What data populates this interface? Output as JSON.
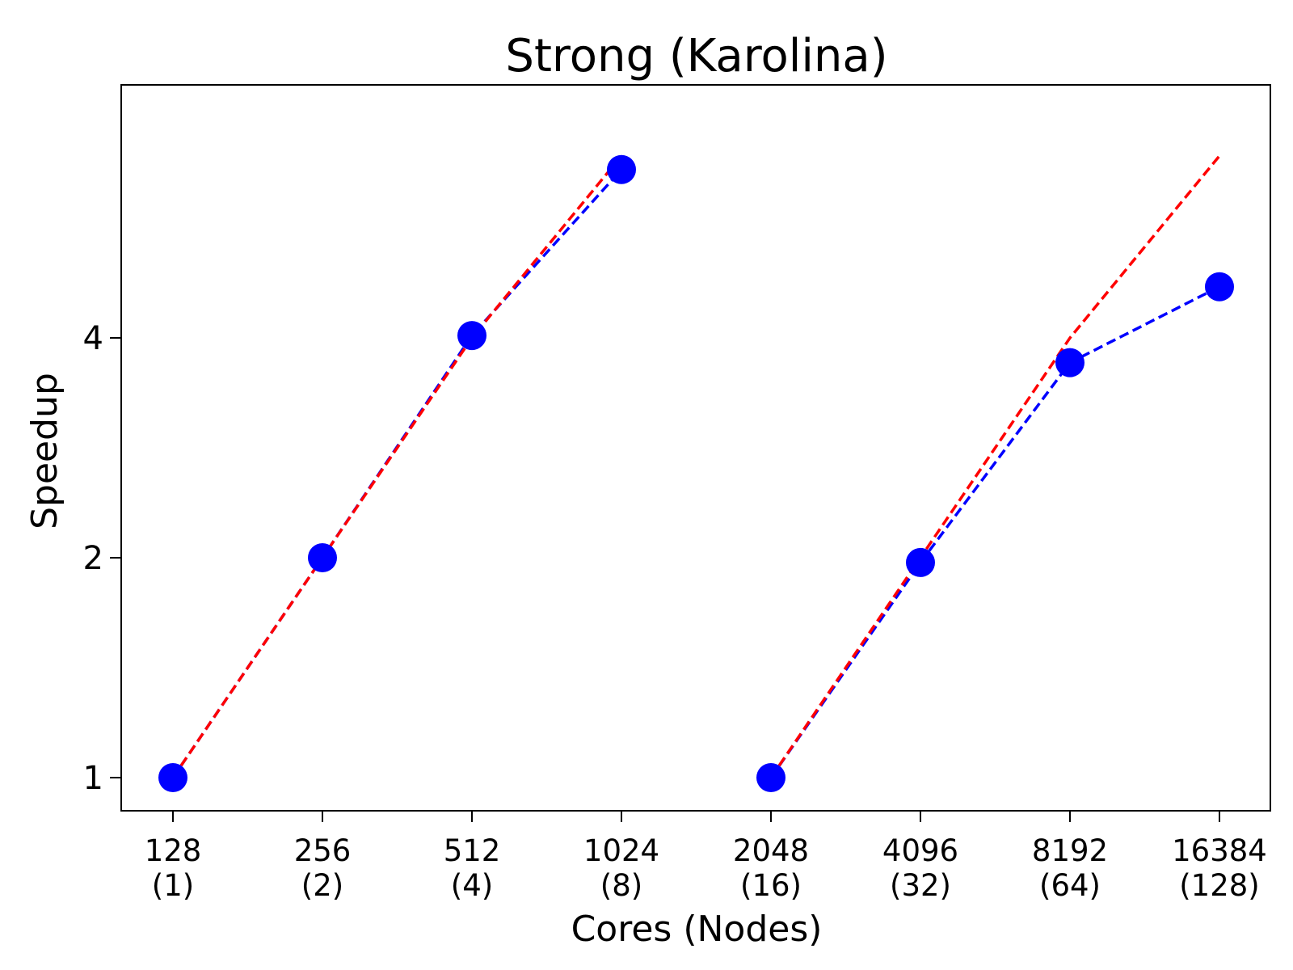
{
  "chart_data": {
    "type": "line",
    "title": "Strong (Karolina)",
    "xlabel": "Cores (Nodes)",
    "ylabel": "Speedup",
    "y_scale": "log2",
    "ylim": [
      0.9,
      7.0
    ],
    "grid": false,
    "x_ticks": [
      {
        "cores": "128",
        "nodes": "(1)"
      },
      {
        "cores": "256",
        "nodes": "(2)"
      },
      {
        "cores": "512",
        "nodes": "(4)"
      },
      {
        "cores": "1024",
        "nodes": "(8)"
      },
      {
        "cores": "2048",
        "nodes": "(16)"
      },
      {
        "cores": "4096",
        "nodes": "(32)"
      },
      {
        "cores": "8192",
        "nodes": "(64)"
      },
      {
        "cores": "16384",
        "nodes": "(128)"
      }
    ],
    "y_ticks": [
      1,
      2,
      4
    ],
    "series": [
      {
        "style": "measured",
        "color": "#0000ff",
        "x": [
          128,
          256,
          512,
          1024
        ],
        "values": [
          1.0,
          2.0,
          4.03,
          6.8
        ]
      },
      {
        "style": "ideal",
        "color": "#ff0000",
        "x": [
          128,
          256,
          512,
          1024
        ],
        "values": [
          1.0,
          2.0,
          4.0,
          7.1
        ]
      },
      {
        "style": "measured",
        "color": "#0000ff",
        "x": [
          2048,
          4096,
          8192,
          16384
        ],
        "values": [
          1.0,
          1.97,
          3.7,
          4.7
        ]
      },
      {
        "style": "ideal",
        "color": "#ff0000",
        "x": [
          2048,
          4096,
          8192,
          16384
        ],
        "values": [
          1.0,
          2.0,
          4.0,
          7.1
        ]
      }
    ]
  }
}
